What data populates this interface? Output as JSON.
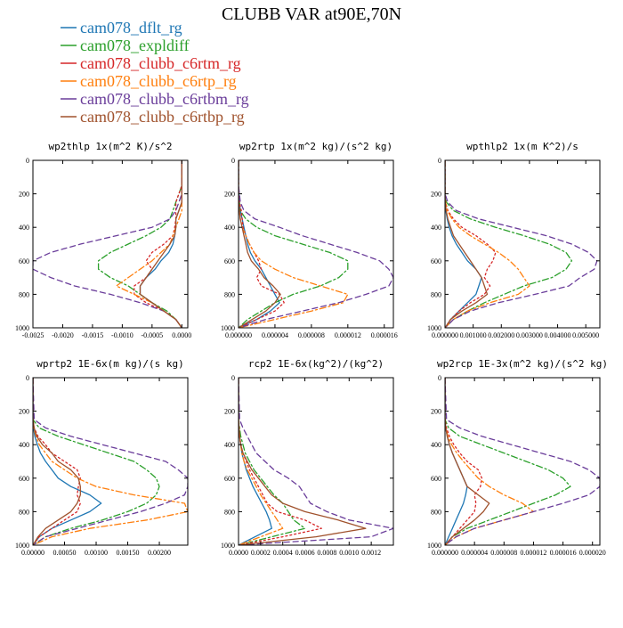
{
  "title": "CLUBB VAR at90E,70N",
  "legend": [
    {
      "name": "cam078_dflt_rg",
      "color": "#1f77b4",
      "dash": "solid"
    },
    {
      "name": "cam078_expldiff",
      "color": "#2ca02c",
      "dash": "dashdot"
    },
    {
      "name": "cam078_clubb_c6rtm_rg",
      "color": "#d62728",
      "dash": "dot"
    },
    {
      "name": "cam078_clubb_c6rtp_rg",
      "color": "#ff7f0e",
      "dash": "dashdot"
    },
    {
      "name": "cam078_clubb_c6rtbm_rg",
      "color": "#6a3d9a",
      "dash": "dash"
    },
    {
      "name": "cam078_clubb_c6rtbp_rg",
      "color": "#a0522d",
      "dash": "solid"
    }
  ],
  "chart_data": [
    {
      "type": "line",
      "title": "wp2thlp   1x(m^2 K)/s^2",
      "ylim": [
        1000,
        0
      ],
      "yticks": [
        0,
        200,
        400,
        600,
        800,
        1000
      ],
      "xlim": [
        -0.0025,
        0.0001
      ],
      "xticks": [
        -0.0025,
        -0.002,
        -0.0015,
        -0.001,
        -0.0005,
        0.0
      ],
      "xticklabels": [
        "-0.0025",
        "-0.0020",
        "-0.0015",
        "-0.0010",
        "-0.0005",
        "0.0000"
      ],
      "levels": [
        0,
        150,
        200,
        250,
        300,
        350,
        400,
        450,
        500,
        550,
        600,
        650,
        700,
        750,
        800,
        850,
        900,
        950,
        1000
      ],
      "series": [
        {
          "values": [
            0,
            0,
            0,
            0,
            -5e-05,
            -0.0001,
            -0.0001,
            -0.00012,
            -0.00015,
            -0.00022,
            -0.00035,
            -0.00045,
            -0.0006,
            -0.0007,
            -0.0007,
            -0.0005,
            -0.0003,
            -0.0001,
            0
          ]
        },
        {
          "values": [
            0,
            0,
            -5e-05,
            -0.0001,
            -0.00015,
            -0.0002,
            -0.00035,
            -0.0006,
            -0.0009,
            -0.0012,
            -0.0014,
            -0.0014,
            -0.0012,
            -0.0009,
            -0.0007,
            -0.0005,
            -0.00025,
            -0.0001,
            0
          ]
        },
        {
          "values": [
            0,
            0,
            -5e-05,
            -0.0001,
            -0.0001,
            -0.0001,
            -0.00012,
            -0.00015,
            -0.0003,
            -0.0005,
            -0.0006,
            -0.0005,
            -0.0006,
            -0.0008,
            -0.0008,
            -0.0006,
            -0.0003,
            -0.0001,
            0
          ]
        },
        {
          "values": [
            0,
            0,
            0,
            0,
            0,
            -5e-05,
            -0.0001,
            -0.00015,
            -0.0002,
            -0.00035,
            -0.0005,
            -0.0007,
            -0.0009,
            -0.0011,
            -0.0008,
            -0.0005,
            -0.0003,
            -0.0001,
            0
          ]
        },
        {
          "values": [
            0,
            0,
            0,
            -5e-05,
            -0.0001,
            -0.0002,
            -0.0005,
            -0.0011,
            -0.0017,
            -0.0022,
            -0.0025,
            -0.0025,
            -0.0022,
            -0.0018,
            -0.0012,
            -0.0007,
            -0.0003,
            -0.0001,
            0
          ]
        },
        {
          "values": [
            0,
            0,
            0,
            0,
            -5e-05,
            -0.0001,
            -0.0001,
            -0.00012,
            -0.0002,
            -0.0003,
            -0.0004,
            -0.0005,
            -0.0006,
            -0.0007,
            -0.0007,
            -0.0005,
            -0.0003,
            -0.0001,
            0
          ]
        }
      ]
    },
    {
      "type": "line",
      "title": "wp2rtp   1x(m^2 kg)/(s^2 kg)",
      "ylim": [
        1000,
        0
      ],
      "yticks": [
        0,
        200,
        400,
        600,
        800,
        1000
      ],
      "xlim": [
        0,
        1.7e-05
      ],
      "xticks": [
        0,
        4e-06,
        8e-06,
        1.2e-05,
        1.6e-05
      ],
      "xticklabels": [
        "0.000000",
        "0.000004",
        "0.000008",
        "0.000012",
        "0.000016"
      ],
      "levels": [
        0,
        150,
        250,
        300,
        350,
        400,
        450,
        500,
        550,
        600,
        650,
        700,
        750,
        800,
        850,
        900,
        950,
        1000
      ],
      "series": [
        {
          "values": [
            0,
            0,
            1e-07,
            2e-07,
            4e-07,
            6e-07,
            8e-07,
            1e-06,
            1.3e-06,
            1.8e-06,
            2.5e-06,
            3e-06,
            3.5e-06,
            4e-06,
            4.5e-06,
            3.5e-06,
            2e-06,
            0
          ]
        },
        {
          "values": [
            0,
            0,
            1e-07,
            2e-07,
            8e-07,
            2e-06,
            4e-06,
            7e-06,
            1e-05,
            1.2e-05,
            1.2e-05,
            1.1e-05,
            9e-06,
            6e-06,
            4e-06,
            2.5e-06,
            1e-06,
            0
          ]
        },
        {
          "values": [
            0,
            0,
            1e-07,
            3e-07,
            4e-07,
            5e-07,
            8e-07,
            1.2e-06,
            1.7e-06,
            2.2e-06,
            2.5e-06,
            2e-06,
            2.5e-06,
            4.5e-06,
            5e-06,
            4e-06,
            2e-06,
            0
          ]
        },
        {
          "values": [
            0,
            0,
            0,
            1e-07,
            2e-07,
            4e-07,
            8e-07,
            1.2e-06,
            1.7e-06,
            2.5e-06,
            4e-06,
            6e-06,
            9e-06,
            1.2e-05,
            1.15e-05,
            8e-06,
            4e-06,
            0
          ]
        },
        {
          "values": [
            0,
            0,
            2e-07,
            6e-07,
            1.8e-06,
            4.5e-06,
            7e-06,
            1e-05,
            1.3e-05,
            1.55e-05,
            1.65e-05,
            1.7e-05,
            1.65e-05,
            1.4e-05,
            1.1e-05,
            7e-06,
            3e-06,
            0
          ]
        },
        {
          "values": [
            0,
            0,
            0,
            1e-07,
            2e-07,
            4e-07,
            6e-07,
            8e-07,
            1e-06,
            1.4e-06,
            2.2e-06,
            2.8e-06,
            3.8e-06,
            4.6e-06,
            4e-06,
            3e-06,
            1.5e-06,
            0
          ]
        }
      ]
    },
    {
      "type": "line",
      "title": "wpthlp2   1x(m K^2)/s",
      "ylim": [
        1000,
        0
      ],
      "yticks": [
        0,
        200,
        400,
        600,
        800,
        1000
      ],
      "xlim": [
        0,
        0.0055
      ],
      "xticks": [
        0,
        0.001,
        0.002,
        0.003,
        0.004,
        0.005
      ],
      "xticklabels": [
        "0.000000",
        "0.001000",
        "0.002000",
        "0.003000",
        "0.004000",
        "0.005000"
      ],
      "levels": [
        0,
        200,
        250,
        300,
        350,
        400,
        450,
        500,
        550,
        600,
        650,
        700,
        750,
        800,
        850,
        900,
        950,
        1000
      ],
      "series": [
        {
          "values": [
            0,
            0,
            1e-05,
            3e-05,
            8e-05,
            0.00015,
            0.00025,
            0.0004,
            0.0006,
            0.0008,
            0.0011,
            0.0013,
            0.0012,
            0.0011,
            0.0008,
            0.0005,
            0.0002,
            0
          ]
        },
        {
          "values": [
            0,
            0,
            5e-05,
            0.0003,
            0.0009,
            0.0018,
            0.0028,
            0.0037,
            0.0043,
            0.0045,
            0.0043,
            0.0038,
            0.0028,
            0.0021,
            0.0014,
            0.0008,
            0.0003,
            0
          ]
        },
        {
          "values": [
            0,
            0,
            2e-05,
            0.0001,
            0.0003,
            0.0006,
            0.0011,
            0.0015,
            0.0018,
            0.0017,
            0.0015,
            0.0014,
            0.0016,
            0.0014,
            0.0009,
            0.0005,
            0.0002,
            0
          ]
        },
        {
          "values": [
            0,
            0,
            2e-05,
            8e-05,
            0.00025,
            0.0005,
            0.0009,
            0.0014,
            0.0019,
            0.0023,
            0.0026,
            0.0028,
            0.003,
            0.0026,
            0.0016,
            0.0008,
            0.0003,
            0
          ]
        },
        {
          "values": [
            0,
            0,
            0.0001,
            0.0004,
            0.0012,
            0.0024,
            0.0036,
            0.0045,
            0.0051,
            0.0054,
            0.0053,
            0.0048,
            0.0044,
            0.0032,
            0.0019,
            0.0009,
            0.0003,
            0
          ]
        },
        {
          "values": [
            0,
            0,
            1e-05,
            4e-05,
            0.0001,
            0.0002,
            0.0003,
            0.0005,
            0.0007,
            0.0009,
            0.0011,
            0.0013,
            0.0014,
            0.0015,
            0.0011,
            0.0006,
            0.0002,
            0
          ]
        }
      ]
    },
    {
      "type": "line",
      "title": "wprtp2   1E-6x(m kg)/(s kg)",
      "ylim": [
        1000,
        0
      ],
      "yticks": [
        0,
        200,
        400,
        600,
        800,
        1000
      ],
      "xlim": [
        0,
        0.00245
      ],
      "xticks": [
        0,
        0.0005,
        0.001,
        0.0015,
        0.002
      ],
      "xticklabels": [
        "0.00000",
        "0.00050",
        "0.00100",
        "0.00150",
        "0.00200"
      ],
      "levels": [
        0,
        250,
        300,
        350,
        400,
        450,
        500,
        550,
        600,
        650,
        700,
        750,
        800,
        850,
        900,
        950,
        1000
      ],
      "series": [
        {
          "values": [
            0,
            0,
            1e-05,
            3e-05,
            7e-05,
            0.00012,
            0.0002,
            0.0003,
            0.0004,
            0.0006,
            0.0009,
            0.00108,
            0.0009,
            0.0006,
            0.0003,
            0.0001,
            0
          ]
        },
        {
          "values": [
            0,
            0,
            0.0001,
            0.0004,
            0.0008,
            0.0012,
            0.0016,
            0.0018,
            0.00195,
            0.002,
            0.00195,
            0.0018,
            0.0015,
            0.0011,
            0.0006,
            0.0002,
            0
          ]
        },
        {
          "values": [
            0,
            0,
            2e-05,
            8e-05,
            0.0002,
            0.0003,
            0.0005,
            0.0007,
            0.00075,
            0.00072,
            0.0007,
            0.00075,
            0.0007,
            0.0005,
            0.0003,
            0.0001,
            0
          ]
        },
        {
          "values": [
            0,
            0,
            1e-05,
            5e-05,
            0.0001,
            0.0002,
            0.0003,
            0.0005,
            0.0007,
            0.001,
            0.0016,
            0.0024,
            0.00245,
            0.0018,
            0.0009,
            0.0003,
            0
          ]
        },
        {
          "values": [
            0,
            2e-05,
            0.0002,
            0.0006,
            0.0011,
            0.0016,
            0.0021,
            0.0023,
            0.00245,
            0.00245,
            0.0024,
            0.0021,
            0.0017,
            0.0012,
            0.0007,
            0.0002,
            0
          ]
        },
        {
          "values": [
            0,
            0,
            2e-05,
            6e-05,
            0.00015,
            0.0003,
            0.0004,
            0.0006,
            0.00072,
            0.00075,
            0.00075,
            0.0007,
            0.0006,
            0.0004,
            0.0002,
            8e-05,
            0
          ]
        }
      ]
    },
    {
      "type": "line",
      "title": "rcp2   1E-6x(kg^2)/(kg^2)",
      "ylim": [
        1000,
        0
      ],
      "yticks": [
        0,
        200,
        400,
        600,
        800,
        1000
      ],
      "xlim": [
        0,
        0.0014
      ],
      "xticks": [
        0,
        0.0002,
        0.0004,
        0.0006,
        0.0008,
        0.001,
        0.0012
      ],
      "xticklabels": [
        "0.0000",
        "0.0002",
        "0.0004",
        "0.0006",
        "0.0008",
        "0.0010",
        "0.0012"
      ],
      "levels": [
        0,
        250,
        300,
        350,
        400,
        450,
        500,
        550,
        600,
        650,
        700,
        750,
        800,
        850,
        900,
        950,
        1000
      ],
      "series": [
        {
          "values": [
            0,
            0,
            5e-06,
            1e-05,
            2e-05,
            3e-05,
            5e-05,
            7e-05,
            0.0001,
            0.00013,
            0.00017,
            0.00021,
            0.00025,
            0.00028,
            0.0003,
            0.00015,
            0
          ]
        },
        {
          "values": [
            0,
            0,
            1e-05,
            2e-05,
            4e-05,
            6e-05,
            0.0001,
            0.00014,
            0.0002,
            0.00026,
            0.00032,
            0.0004,
            0.00045,
            0.0005,
            0.0006,
            0.0003,
            0
          ]
        },
        {
          "values": [
            0,
            0,
            5e-06,
            1e-05,
            2e-05,
            4e-05,
            7e-05,
            0.0001,
            0.00014,
            0.00018,
            0.00022,
            0.00026,
            0.00035,
            0.0006,
            0.00075,
            0.0004,
            0
          ]
        },
        {
          "values": [
            0,
            0,
            5e-06,
            1e-05,
            2e-05,
            3e-05,
            5e-05,
            8e-05,
            0.00012,
            0.00016,
            0.0002,
            0.00025,
            0.0003,
            0.00035,
            0.0004,
            0.0002,
            0
          ]
        },
        {
          "values": [
            0,
            1e-05,
            4e-05,
            8e-05,
            0.00012,
            0.00016,
            0.00024,
            0.00032,
            0.00045,
            0.00055,
            0.0006,
            0.00065,
            0.0008,
            0.001,
            0.0014,
            0.0012,
            0
          ]
        },
        {
          "values": [
            0,
            0,
            5e-06,
            1e-05,
            2e-05,
            4e-05,
            8e-05,
            0.00012,
            0.00018,
            0.00024,
            0.0003,
            0.0004,
            0.0006,
            0.0009,
            0.00115,
            0.0007,
            0
          ]
        }
      ]
    },
    {
      "type": "line",
      "title": "wp2rcp   1E-3x(m^2 kg)/(s^2 kg)",
      "ylim": [
        1000,
        0
      ],
      "yticks": [
        0,
        200,
        400,
        600,
        800,
        1000
      ],
      "xlim": [
        0,
        2.1e-05
      ],
      "xticks": [
        0,
        4e-06,
        8e-06,
        1.2e-05,
        1.6e-05,
        2e-05
      ],
      "xticklabels": [
        "0.000000",
        "0.000004",
        "0.000008",
        "0.000012",
        "0.000016",
        "0.000020"
      ],
      "levels": [
        0,
        250,
        300,
        350,
        400,
        450,
        500,
        550,
        600,
        650,
        700,
        750,
        800,
        850,
        900,
        950,
        1000
      ],
      "series": [
        {
          "values": [
            0,
            0,
            1e-07,
            3e-07,
            6e-07,
            1e-06,
            1.5e-06,
            2e-06,
            2.5e-06,
            3e-06,
            2.8e-06,
            2.5e-06,
            2e-06,
            1.5e-06,
            1e-06,
            5e-07,
            0
          ]
        },
        {
          "values": [
            0,
            0,
            5e-07,
            2e-06,
            5e-06,
            8e-06,
            1.1e-05,
            1.4e-05,
            1.6e-05,
            1.7e-05,
            1.5e-05,
            1.2e-05,
            9e-06,
            6e-06,
            3e-06,
            1e-06,
            0
          ]
        },
        {
          "values": [
            0,
            0,
            2e-07,
            6e-07,
            1.2e-06,
            2e-06,
            3e-06,
            4.5e-06,
            5e-06,
            4.8e-06,
            4e-06,
            4.2e-06,
            4e-06,
            3e-06,
            2e-06,
            1e-06,
            0
          ]
        },
        {
          "values": [
            0,
            0,
            1e-07,
            4e-07,
            9e-07,
            1.6e-06,
            2.5e-06,
            3.5e-06,
            4.5e-06,
            6e-06,
            8e-06,
            1.05e-05,
            1.2e-05,
            8e-06,
            4e-06,
            1.5e-06,
            0
          ]
        },
        {
          "values": [
            0,
            2e-07,
            2e-06,
            5e-06,
            9e-06,
            1.3e-05,
            1.7e-05,
            1.95e-05,
            2.1e-05,
            2.1e-05,
            1.95e-05,
            1.6e-05,
            1.2e-05,
            8e-06,
            4e-06,
            1.5e-06,
            0
          ]
        },
        {
          "values": [
            0,
            0,
            1e-07,
            3e-07,
            6e-07,
            1e-06,
            1.5e-06,
            2e-06,
            2.5e-06,
            3e-06,
            4.5e-06,
            6e-06,
            5.2e-06,
            4e-06,
            2.5e-06,
            1e-06,
            0
          ]
        }
      ]
    }
  ]
}
